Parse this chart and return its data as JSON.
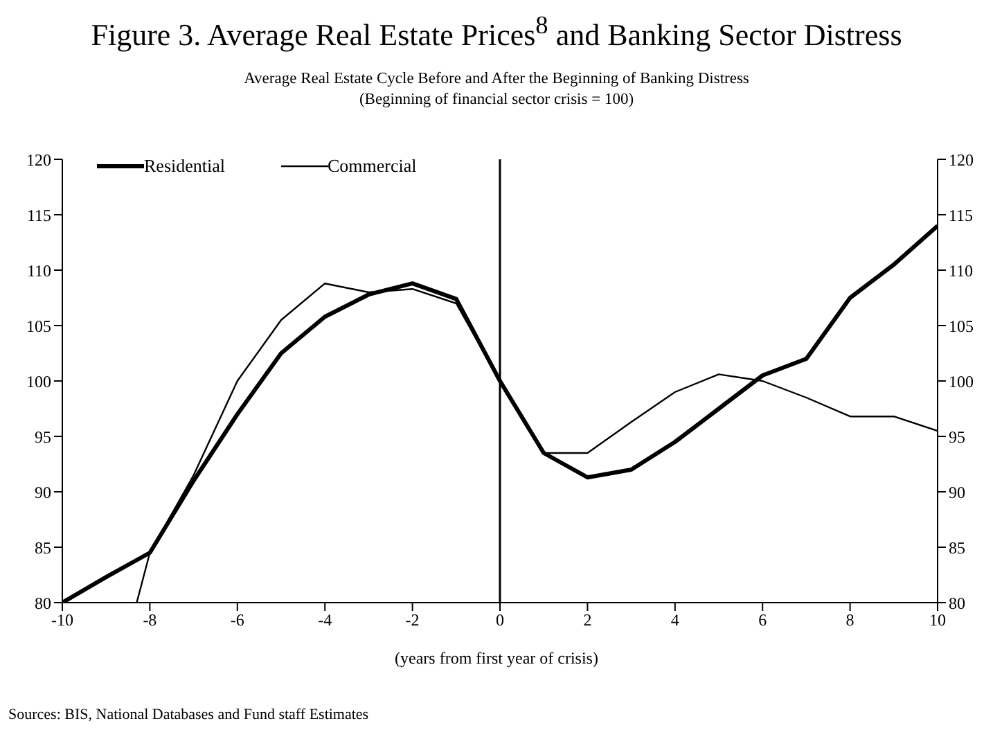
{
  "chart_data": {
    "type": "line",
    "title": "Figure 3. Average Real Estate Prices$^{8}$ and Banking Sector Distress",
    "subtitle": "Average Real Estate Cycle Before and After the Beginning of Banking Distress\n(Beginning of financial sector crisis = 100)",
    "xlabel": "(years from first year of crisis)",
    "x": [
      -10,
      -9,
      -8,
      -7,
      -6,
      -5,
      -4,
      -3,
      -2,
      -1,
      0,
      1,
      2,
      3,
      4,
      5,
      6,
      7,
      8,
      9,
      10
    ],
    "series": [
      {
        "name": "Residential",
        "color": "#000000",
        "values": [
          80,
          82.3,
          84.5,
          91,
          97,
          102.5,
          105.8,
          107.8,
          108.8,
          107.4,
          100,
          93.5,
          91.3,
          92,
          94.5,
          97.5,
          100.5,
          102,
          107.5,
          110.5,
          114
        ]
      },
      {
        "name": "Commercial",
        "color": "#000000",
        "x": [
          -8.3,
          -8,
          -7,
          -6,
          -5,
          -4,
          -3,
          -2,
          -1,
          0,
          1,
          2,
          3,
          4,
          5,
          6,
          7,
          8,
          9,
          10
        ],
        "values": [
          80,
          84.5,
          91.5,
          100,
          105.5,
          108.8,
          108,
          108.3,
          107,
          100,
          93.5,
          93.5,
          96.3,
          99,
          100.6,
          100,
          98.5,
          96.8,
          96.8,
          95.5
        ]
      }
    ],
    "xlim": [
      -10,
      10
    ],
    "xticks": [
      -10,
      -8,
      -6,
      -4,
      -2,
      0,
      2,
      4,
      6,
      8,
      10
    ],
    "ylim": [
      80,
      120
    ],
    "yticks": [
      80,
      85,
      90,
      95,
      100,
      105,
      110,
      115,
      120
    ],
    "y2lim": [
      80,
      120
    ],
    "y2ticks": [
      80,
      85,
      90,
      95,
      100,
      105,
      110,
      115,
      120
    ],
    "ref_lines": [
      {
        "axis": "x",
        "value": 0,
        "color": "#000000"
      }
    ],
    "grid": false,
    "legend": "top left",
    "marker": "none",
    "line_style": "solid",
    "annotations": [
      "Sources: BIS, National Databases and Fund staff Estimates"
    ]
  }
}
